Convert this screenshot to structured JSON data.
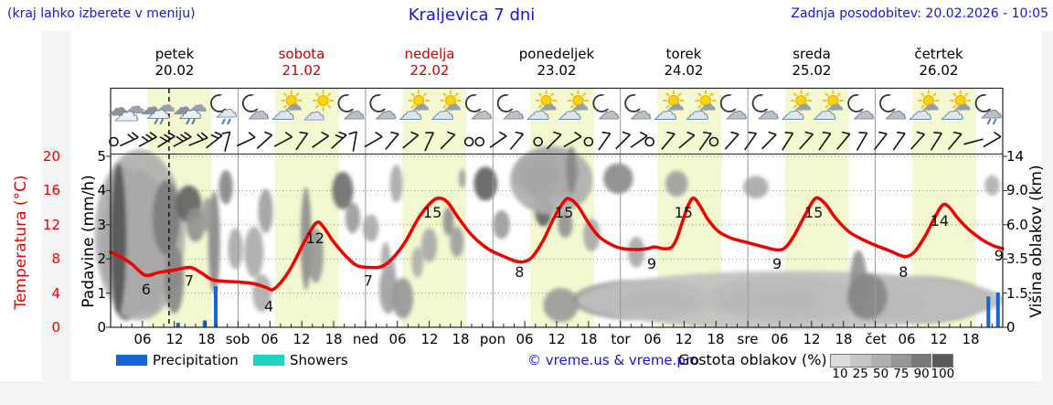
{
  "header": {
    "menu_hint": "(kraj lahko izberete v meniju)",
    "title": "Kraljevica 7 dni",
    "last_update": "Zadnja posodobitev: 20.02.2026 - 10:05"
  },
  "days": [
    {
      "name": "petek",
      "date": "20.02",
      "color": "#000000"
    },
    {
      "name": "sobota",
      "date": "21.02",
      "color": "#cc0000"
    },
    {
      "name": "nedelja",
      "date": "22.02",
      "color": "#cc0000"
    },
    {
      "name": "ponedeljek",
      "date": "23.02",
      "color": "#000000"
    },
    {
      "name": "torek",
      "date": "24.02",
      "color": "#000000"
    },
    {
      "name": "sreda",
      "date": "25.02",
      "color": "#000000"
    },
    {
      "name": "četrtek",
      "date": "26.02",
      "color": "#000000"
    }
  ],
  "axes": {
    "precip_label": "Padavine (mm/h)",
    "precip_ticks": [
      "5",
      "4",
      "3",
      "2",
      "1",
      "0"
    ],
    "temp_label": "Temperatura (°C)",
    "temp_ticks": [
      "20",
      "16",
      "12",
      "8",
      "4",
      "0"
    ],
    "temp_color": "#ee0000",
    "cloudheight_label": "Višina oblakov (km)",
    "cloudheight_ticks": [
      "14",
      "9.0",
      "6.0",
      "3.5",
      "1.5",
      "0"
    ],
    "time_labels": [
      "06",
      "12",
      "18",
      "sob",
      "06",
      "12",
      "18",
      "ned",
      "06",
      "12",
      "18",
      "pon",
      "06",
      "12",
      "18",
      "tor",
      "06",
      "12",
      "18",
      "sre",
      "06",
      "12",
      "18",
      "čet",
      "06",
      "12",
      "18"
    ]
  },
  "legend": {
    "precipitation_label": "Precipitation",
    "precipitation_color": "#1565d8",
    "showers_label": "Showers",
    "showers_color": "#1bd6bd",
    "copyright": "© vreme.us & vreme.pro",
    "cloud_density_label": "Gostota oblakov (%)",
    "colorbar_labels": [
      "10",
      "25",
      "50",
      "75",
      "90",
      "100"
    ],
    "colorbar_shades": [
      "#dcdcdc",
      "#c6c6c6",
      "#b0b0b0",
      "#969696",
      "#7a7a7a",
      "#5a5a5a"
    ]
  },
  "chart_data": {
    "type": "line",
    "title": "Kraljevica 7 dni",
    "x_range_hours": [
      0,
      168
    ],
    "precip_axis_range": [
      0,
      5
    ],
    "temp_axis_range_c": [
      0,
      20
    ],
    "day_band_hours": [
      7,
      19
    ],
    "day_band_color": "#f4f8d0",
    "now_hour": 11.0,
    "temperature_line_color": "#f10000",
    "temperature_points": [
      [
        0,
        8.8
      ],
      [
        2,
        8.2
      ],
      [
        4,
        7.4
      ],
      [
        6.5,
        6.1
      ],
      [
        9,
        6.4
      ],
      [
        12,
        6.7
      ],
      [
        15,
        7.0
      ],
      [
        17,
        6.4
      ],
      [
        19,
        5.6
      ],
      [
        21,
        5.4
      ],
      [
        24,
        5.3
      ],
      [
        27,
        5.1
      ],
      [
        29.5,
        4.6
      ],
      [
        30.5,
        4.4
      ],
      [
        32,
        5.2
      ],
      [
        34,
        7.0
      ],
      [
        36.5,
        10.0
      ],
      [
        38.7,
        12.2
      ],
      [
        40,
        11.8
      ],
      [
        42,
        10.0
      ],
      [
        44.5,
        8.2
      ],
      [
        46.5,
        7.2
      ],
      [
        49,
        7.0
      ],
      [
        51,
        7.1
      ],
      [
        53,
        8.0
      ],
      [
        55.5,
        10.0
      ],
      [
        58,
        12.8
      ],
      [
        60.5,
        14.7
      ],
      [
        62,
        15.1
      ],
      [
        63.5,
        14.6
      ],
      [
        65.5,
        12.8
      ],
      [
        68,
        10.8
      ],
      [
        71,
        9.2
      ],
      [
        74,
        8.3
      ],
      [
        76.5,
        7.7
      ],
      [
        78,
        7.7
      ],
      [
        79.5,
        8.3
      ],
      [
        81.5,
        10.2
      ],
      [
        83.5,
        12.8
      ],
      [
        85.5,
        14.8
      ],
      [
        86.5,
        15.0
      ],
      [
        88,
        14.2
      ],
      [
        90,
        12.2
      ],
      [
        92,
        10.6
      ],
      [
        94.5,
        9.6
      ],
      [
        96.5,
        9.2
      ],
      [
        99,
        9.1
      ],
      [
        101,
        9.2
      ],
      [
        102.5,
        9.4
      ],
      [
        104,
        9.2
      ],
      [
        105.5,
        9.3
      ],
      [
        106.5,
        10.2
      ],
      [
        107.5,
        12.0
      ],
      [
        108.8,
        14.3
      ],
      [
        109.8,
        15.1
      ],
      [
        111,
        14.2
      ],
      [
        112.5,
        12.6
      ],
      [
        114.5,
        11.2
      ],
      [
        117,
        10.4
      ],
      [
        120,
        9.9
      ],
      [
        123,
        9.4
      ],
      [
        125.5,
        9.05
      ],
      [
        127,
        9.3
      ],
      [
        128.5,
        10.5
      ],
      [
        130.5,
        12.8
      ],
      [
        132.3,
        14.8
      ],
      [
        133.3,
        15.1
      ],
      [
        134.8,
        14.3
      ],
      [
        136.5,
        12.8
      ],
      [
        139,
        11.2
      ],
      [
        141.5,
        10.3
      ],
      [
        144,
        9.6
      ],
      [
        146.5,
        9.0
      ],
      [
        148.8,
        8.4
      ],
      [
        150,
        8.3
      ],
      [
        151.5,
        8.9
      ],
      [
        153.5,
        10.8
      ],
      [
        155.5,
        13.2
      ],
      [
        156.8,
        14.35
      ],
      [
        158,
        14.0
      ],
      [
        159.5,
        12.8
      ],
      [
        161.5,
        11.5
      ],
      [
        164,
        10.3
      ],
      [
        166,
        9.6
      ],
      [
        168,
        9.2
      ]
    ],
    "temperature_labels": [
      [
        6.7,
        6
      ],
      [
        14.8,
        7
      ],
      [
        29.8,
        4
      ],
      [
        38.5,
        12
      ],
      [
        48.5,
        7
      ],
      [
        60.6,
        15
      ],
      [
        77,
        8
      ],
      [
        85.4,
        15
      ],
      [
        101.9,
        9
      ],
      [
        107.9,
        15
      ],
      [
        125.5,
        9
      ],
      [
        132.4,
        15
      ],
      [
        149.3,
        8
      ],
      [
        156.1,
        14
      ],
      [
        167.3,
        9
      ]
    ],
    "precipitation_bars_mm": [
      [
        12.7,
        0.13
      ],
      [
        17.7,
        0.2
      ],
      [
        19.8,
        1.2
      ],
      [
        165.3,
        0.9
      ],
      [
        167.1,
        1.02
      ]
    ],
    "cloud_blobs": [
      [
        5,
        2.5,
        6.8,
        2.1,
        0.7
      ],
      [
        2.5,
        3.9,
        3.2,
        0.8,
        0.65
      ],
      [
        3,
        1.1,
        2.8,
        0.9,
        0.6
      ],
      [
        7.5,
        1.7,
        2.6,
        1.3,
        0.65
      ],
      [
        5.5,
        2.7,
        8.5,
        2.5,
        0.3
      ],
      [
        10.5,
        3.2,
        2.6,
        1.1,
        0.55
      ],
      [
        12,
        1.4,
        1.8,
        1.0,
        0.5
      ],
      [
        1.5,
        2.6,
        1.5,
        2.2,
        0.75
      ],
      [
        14.7,
        3.6,
        2.4,
        0.55,
        0.68
      ],
      [
        16,
        3.0,
        1.8,
        0.5,
        0.45
      ],
      [
        19.5,
        2.5,
        1.1,
        1.5,
        0.5
      ],
      [
        18.2,
        3.3,
        1.0,
        0.5,
        0.4
      ],
      [
        21.7,
        4.1,
        1.3,
        0.5,
        0.5
      ],
      [
        23.5,
        2.3,
        1.4,
        0.6,
        0.32
      ],
      [
        27,
        2.2,
        1.8,
        0.75,
        0.32
      ],
      [
        28.5,
        1.0,
        1.8,
        0.55,
        0.3
      ],
      [
        29.2,
        3.4,
        1.4,
        0.65,
        0.38
      ],
      [
        36.8,
        2.6,
        1.0,
        1.5,
        0.48
      ],
      [
        38.6,
        2.1,
        1.5,
        0.8,
        0.42
      ],
      [
        43.7,
        4.0,
        2.0,
        0.55,
        0.62
      ],
      [
        45.6,
        3.2,
        1.4,
        0.45,
        0.4
      ],
      [
        49,
        2.9,
        1.5,
        0.4,
        0.33
      ],
      [
        52.3,
        1.1,
        1.7,
        0.7,
        0.38
      ],
      [
        55,
        0.85,
        2.0,
        0.6,
        0.42
      ],
      [
        53.8,
        4.2,
        1.2,
        0.55,
        0.33
      ],
      [
        51.8,
        2.0,
        0.9,
        0.5,
        0.32
      ],
      [
        52.8,
        1.6,
        0.9,
        0.45,
        0.33
      ],
      [
        60,
        2.4,
        1.5,
        0.5,
        0.33
      ],
      [
        63.6,
        3.1,
        1.0,
        0.42,
        0.45
      ],
      [
        65.2,
        2.5,
        1.3,
        0.45,
        0.38
      ],
      [
        57.8,
        1.9,
        1.1,
        0.45,
        0.3
      ],
      [
        66.2,
        4.35,
        0.6,
        0.28,
        0.4
      ],
      [
        70.6,
        4.2,
        2.2,
        0.5,
        0.68
      ],
      [
        73.6,
        3.0,
        1.6,
        0.42,
        0.4
      ],
      [
        82,
        4.5,
        6.3,
        0.72,
        0.55
      ],
      [
        81,
        4.4,
        3.4,
        0.6,
        0.8
      ],
      [
        81.5,
        3.5,
        1.7,
        0.55,
        0.68
      ],
      [
        85.6,
        3.0,
        1.4,
        0.38,
        0.45
      ],
      [
        83,
        4.3,
        7.8,
        1.0,
        0.3
      ],
      [
        86.8,
        4.6,
        1.0,
        0.7,
        0.5
      ],
      [
        90.6,
        2.7,
        1.6,
        0.48,
        0.33
      ],
      [
        95.6,
        4.35,
        2.8,
        0.45,
        0.48
      ],
      [
        99,
        2.2,
        1.6,
        0.45,
        0.33
      ],
      [
        106.6,
        4.2,
        2.1,
        0.38,
        0.38
      ],
      [
        84.8,
        0.65,
        3.3,
        0.5,
        0.4
      ],
      [
        100,
        0.8,
        13,
        0.6,
        0.42
      ],
      [
        127,
        0.85,
        15,
        0.65,
        0.42
      ],
      [
        151,
        0.8,
        15,
        0.7,
        0.42
      ],
      [
        103,
        0.75,
        7.5,
        0.35,
        0.58
      ],
      [
        124,
        0.8,
        9.5,
        0.4,
        0.58
      ],
      [
        146,
        0.7,
        7.5,
        0.4,
        0.52
      ],
      [
        128,
        0.8,
        40,
        0.85,
        0.22
      ],
      [
        140.8,
        1.3,
        1.6,
        0.95,
        0.45
      ],
      [
        142.5,
        0.9,
        3.8,
        0.68,
        0.5
      ],
      [
        121.5,
        4.1,
        2.4,
        0.33,
        0.33
      ],
      [
        166,
        4.15,
        1.4,
        0.3,
        0.3
      ]
    ],
    "weather_icons": [
      "clouds-heavy",
      "clouds-drizzle",
      "clouds-drizzle",
      "moon-clouds-drizzle",
      "moon-cloud",
      "sun-clouds",
      "sun-cloud",
      "moon-cloud",
      "moon-cloud",
      "sun-clouds",
      "sun-clouds",
      "moon-cloud",
      "moon-cloud",
      "sun-clouds",
      "sun-clouds",
      "moon-cloud",
      "moon-cloud",
      "sun-clouds",
      "sun-clouds",
      "moon-cloud",
      "moon-cloud",
      "sun-clouds",
      "sun-clouds",
      "moon-cloud",
      "moon-cloud",
      "sun-clouds",
      "sun-clouds",
      "moon-cloud-drizzle"
    ],
    "wind_barbs": [
      [
        0.6,
        -1,
        0
      ],
      [
        3.5,
        2,
        -25
      ],
      [
        7,
        3,
        -28
      ],
      [
        10.5,
        3,
        -32
      ],
      [
        13.5,
        3,
        -28
      ],
      [
        16.5,
        2,
        -22
      ],
      [
        19.5,
        2,
        -38
      ],
      [
        22,
        1,
        -75
      ],
      [
        25.5,
        1,
        -25
      ],
      [
        29,
        1,
        -42
      ],
      [
        32.5,
        1,
        -28
      ],
      [
        36,
        1,
        -55
      ],
      [
        39.5,
        1,
        -35
      ],
      [
        43,
        2,
        -42
      ],
      [
        46,
        1,
        -80
      ],
      [
        49.5,
        1,
        -30
      ],
      [
        53,
        1,
        -50
      ],
      [
        56.5,
        1,
        -40
      ],
      [
        60,
        1,
        -65
      ],
      [
        63.5,
        1,
        -45
      ],
      [
        67.5,
        -1,
        0
      ],
      [
        69.5,
        -1,
        0
      ],
      [
        73,
        1,
        -35
      ],
      [
        76.5,
        1,
        -50
      ],
      [
        80.5,
        -1,
        0
      ],
      [
        83.5,
        1,
        -45
      ],
      [
        87,
        1,
        -30
      ],
      [
        90,
        -1,
        0
      ],
      [
        93,
        1,
        -55
      ],
      [
        96.5,
        1,
        -45
      ],
      [
        99.5,
        1,
        -35
      ],
      [
        101.5,
        -1,
        0
      ],
      [
        105,
        1,
        -50
      ],
      [
        108.5,
        1,
        -40
      ],
      [
        112,
        1,
        -55
      ],
      [
        113.6,
        -1,
        0
      ],
      [
        117,
        1,
        -48
      ],
      [
        120.5,
        1,
        -55
      ],
      [
        124,
        1,
        -45
      ],
      [
        127.5,
        1,
        -58
      ],
      [
        131,
        1,
        -48
      ],
      [
        134.5,
        1,
        -55
      ],
      [
        138,
        1,
        -50
      ],
      [
        141.5,
        1,
        -60
      ],
      [
        145,
        1,
        -52
      ],
      [
        148.5,
        1,
        -55
      ],
      [
        152,
        1,
        -48
      ],
      [
        155.5,
        1,
        -58
      ],
      [
        159,
        1,
        -50
      ],
      [
        162.5,
        0,
        -15
      ],
      [
        166,
        1,
        -30
      ]
    ]
  }
}
